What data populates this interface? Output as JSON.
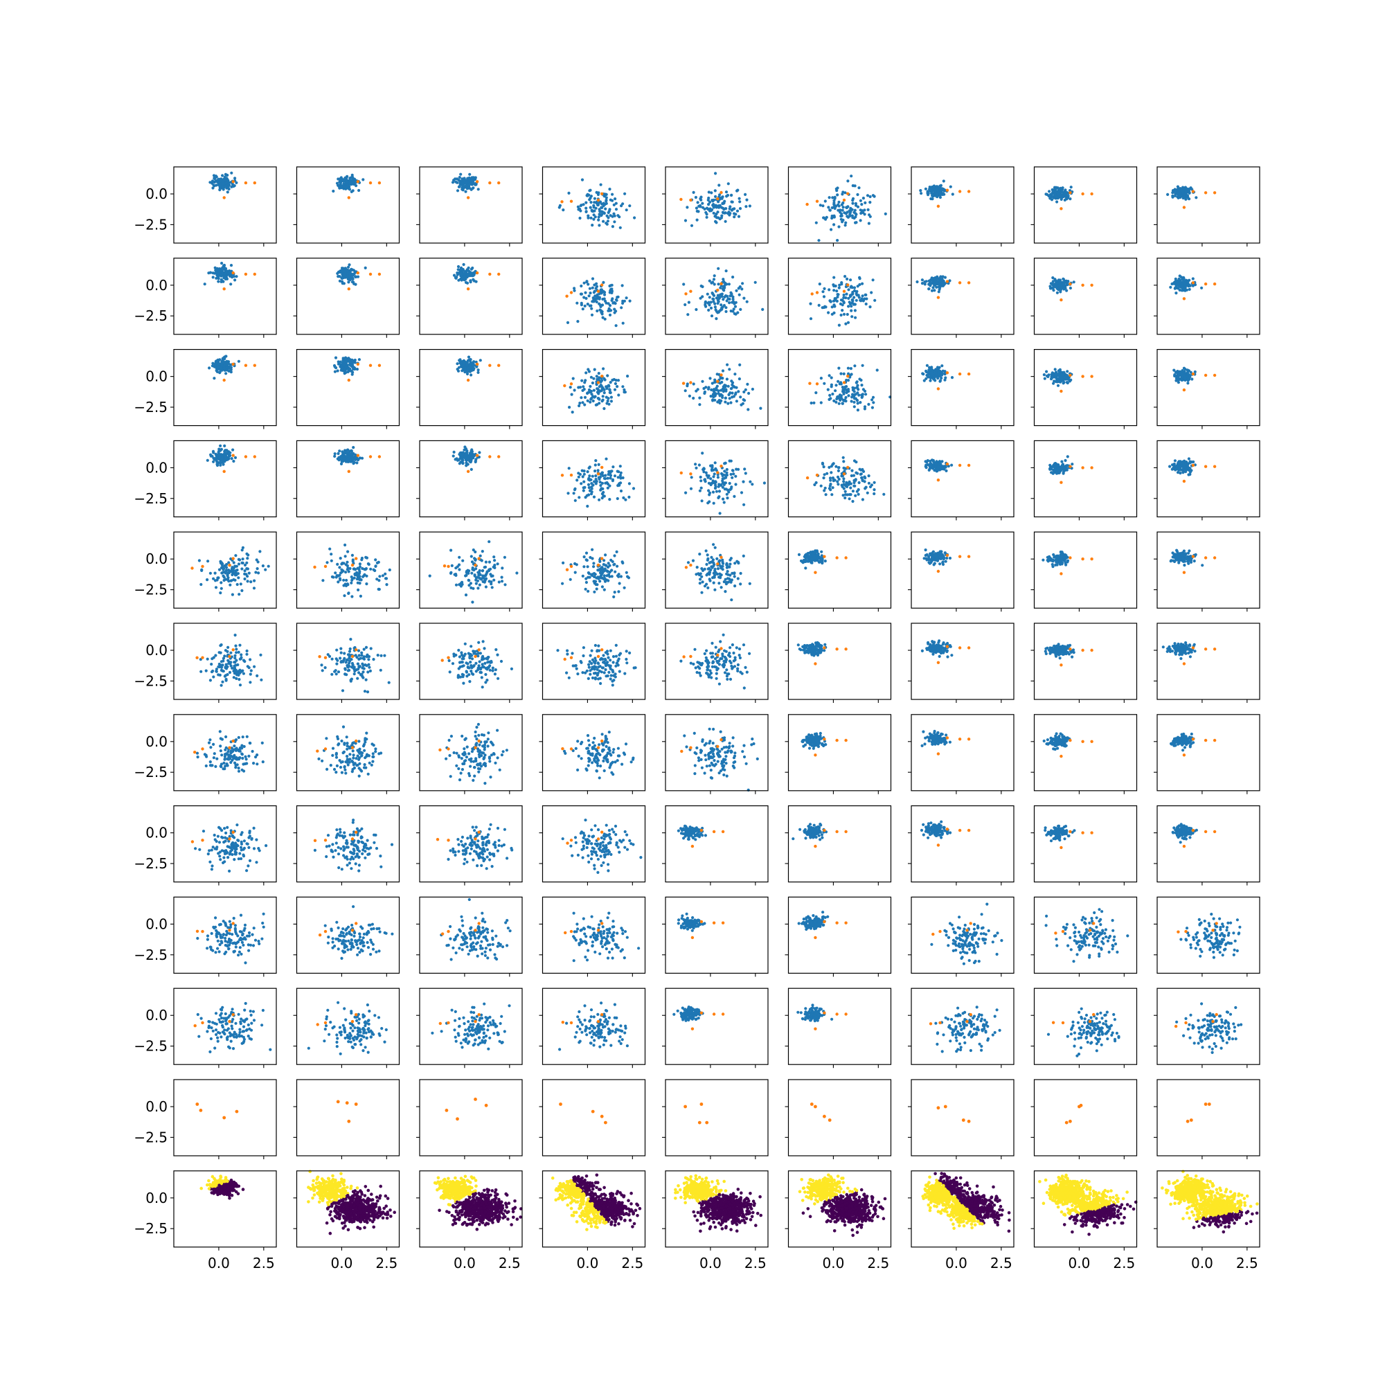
{
  "chart_data": {
    "type": "scatter",
    "layout": "grid of scatter subplots, 12 rows by 9 columns, shared x and y axes",
    "colors": {
      "points": "#1f77b4",
      "centers": "#ff7f0e",
      "cluster_a": "#fde725",
      "cluster_b": "#440154",
      "axis": "#000000",
      "background": "#ffffff"
    },
    "xlim": [
      -2.5,
      3.2
    ],
    "ylim": [
      -4.0,
      2.2
    ],
    "x_ticks": [
      0.0,
      2.5
    ],
    "y_ticks": [
      0.0,
      -2.5
    ],
    "x_tick_labels": [
      "0.0",
      "2.5"
    ],
    "y_tick_labels": [
      "0.0",
      "−2.5"
    ],
    "tick_labels_shown": "y tick labels on the left column, x tick labels on the bottom row",
    "grid": false,
    "legend": "none",
    "columns": [
      {
        "mode": "compact",
        "center": [
          0.2,
          0.9
        ],
        "spread": [
          0.3,
          0.3
        ],
        "seeds": [
          [
            0.1,
            -0.3
          ],
          [
            0.9,
            0.6
          ],
          [
            1.1,
            0.4
          ]
        ]
      },
      {
        "mode": "compact",
        "center": [
          0.3,
          0.9
        ],
        "spread": [
          0.3,
          0.3
        ],
        "seeds": [
          [
            0.1,
            -0.2
          ],
          [
            0.9,
            0.5
          ],
          [
            0.7,
            0.8
          ]
        ]
      },
      {
        "mode": "compact",
        "center": [
          0.1,
          0.9
        ],
        "spread": [
          0.3,
          0.3
        ],
        "seeds": [
          [
            0.0,
            -0.2
          ],
          [
            0.4,
            0.4
          ],
          [
            0.2,
            0.9
          ]
        ]
      },
      {
        "mode": "wide",
        "center": [
          0.7,
          -1.1
        ],
        "spread": [
          0.75,
          0.8
        ],
        "seeds": [
          [
            -1.5,
            -1.2
          ],
          [
            -1.0,
            -0.8
          ],
          [
            0.4,
            0.1
          ]
        ]
      },
      {
        "mode": "wide",
        "center": [
          0.5,
          -1.0
        ],
        "spread": [
          0.75,
          0.8
        ],
        "seeds": [
          [
            -1.5,
            -1.0
          ],
          [
            -1.2,
            -0.6
          ],
          [
            0.6,
            0.3
          ]
        ]
      },
      {
        "mode": "wide",
        "center": [
          0.7,
          -1.1
        ],
        "spread": [
          0.75,
          0.8
        ],
        "seeds": [
          [
            -1.4,
            -0.8
          ],
          [
            -0.9,
            -0.6
          ],
          [
            0.3,
            0.3
          ]
        ]
      },
      {
        "mode": "compact",
        "center": [
          -1.1,
          0.2
        ],
        "spread": [
          0.3,
          0.25
        ],
        "seeds": [
          [
            0.5,
            0.1
          ],
          [
            -0.1,
            0.2
          ],
          [
            -0.6,
            -0.9
          ]
        ]
      },
      {
        "mode": "compact",
        "center": [
          -1.1,
          0.0
        ],
        "spread": [
          0.3,
          0.25
        ],
        "seeds": [
          [
            0.1,
            0.1
          ],
          [
            -0.6,
            -1.2
          ],
          [
            -0.9,
            -1.0
          ]
        ]
      },
      {
        "mode": "compact",
        "center": [
          -1.1,
          0.1
        ],
        "spread": [
          0.3,
          0.25
        ],
        "seeds": [
          [
            0.5,
            0.0
          ],
          [
            -0.3,
            -1.4
          ],
          [
            -0.6,
            -0.8
          ]
        ]
      }
    ],
    "wide_rows_from": [
      4,
      4,
      5,
      4,
      5,
      5,
      8,
      8,
      8,
      8,
      8,
      8
    ],
    "orange_rows": [
      [
        [
          -1.2,
          0.2
        ],
        [
          -1.0,
          -0.3
        ],
        [
          0.3,
          -0.9
        ],
        [
          1.0,
          -0.4
        ]
      ],
      [
        [
          -0.2,
          0.4
        ],
        [
          0.4,
          -1.2
        ],
        [
          0.3,
          0.3
        ],
        [
          0.8,
          0.2
        ]
      ],
      [
        [
          -1.0,
          -0.3
        ],
        [
          -0.4,
          -1.0
        ],
        [
          0.6,
          0.6
        ],
        [
          1.2,
          0.1
        ]
      ],
      [
        [
          -1.5,
          0.2
        ],
        [
          0.3,
          -0.4
        ],
        [
          0.8,
          -0.8
        ],
        [
          1.0,
          -1.3
        ]
      ],
      [
        [
          -1.4,
          0.0
        ],
        [
          -0.6,
          -1.3
        ],
        [
          -0.2,
          -1.3
        ],
        [
          -0.5,
          0.2
        ]
      ],
      [
        [
          -1.2,
          0.2
        ],
        [
          -1.0,
          0.0
        ],
        [
          -0.5,
          -0.8
        ],
        [
          -0.2,
          -1.1
        ]
      ],
      [
        [
          -1.0,
          -0.1
        ],
        [
          -0.6,
          0.0
        ],
        [
          0.4,
          -1.1
        ],
        [
          0.7,
          -1.2
        ]
      ],
      [
        [
          -0.7,
          -1.3
        ],
        [
          -0.5,
          -1.2
        ],
        [
          0.0,
          0.0
        ],
        [
          0.1,
          0.1
        ]
      ],
      [
        [
          -0.8,
          -1.2
        ],
        [
          -0.6,
          -1.1
        ],
        [
          0.2,
          0.2
        ],
        [
          0.4,
          0.2
        ]
      ]
    ],
    "bottom_row": {
      "description": "all points colored by cluster assignment",
      "split_angle_deg": [
        30,
        40,
        35,
        -60,
        30,
        25,
        -55,
        20,
        15
      ],
      "split_offset": [
        0.9,
        0.0,
        0.0,
        0.0,
        0.0,
        0.0,
        0.0,
        -1.2,
        -1.6
      ],
      "flip": [
        false,
        false,
        false,
        true,
        false,
        false,
        true,
        false,
        false
      ]
    }
  }
}
